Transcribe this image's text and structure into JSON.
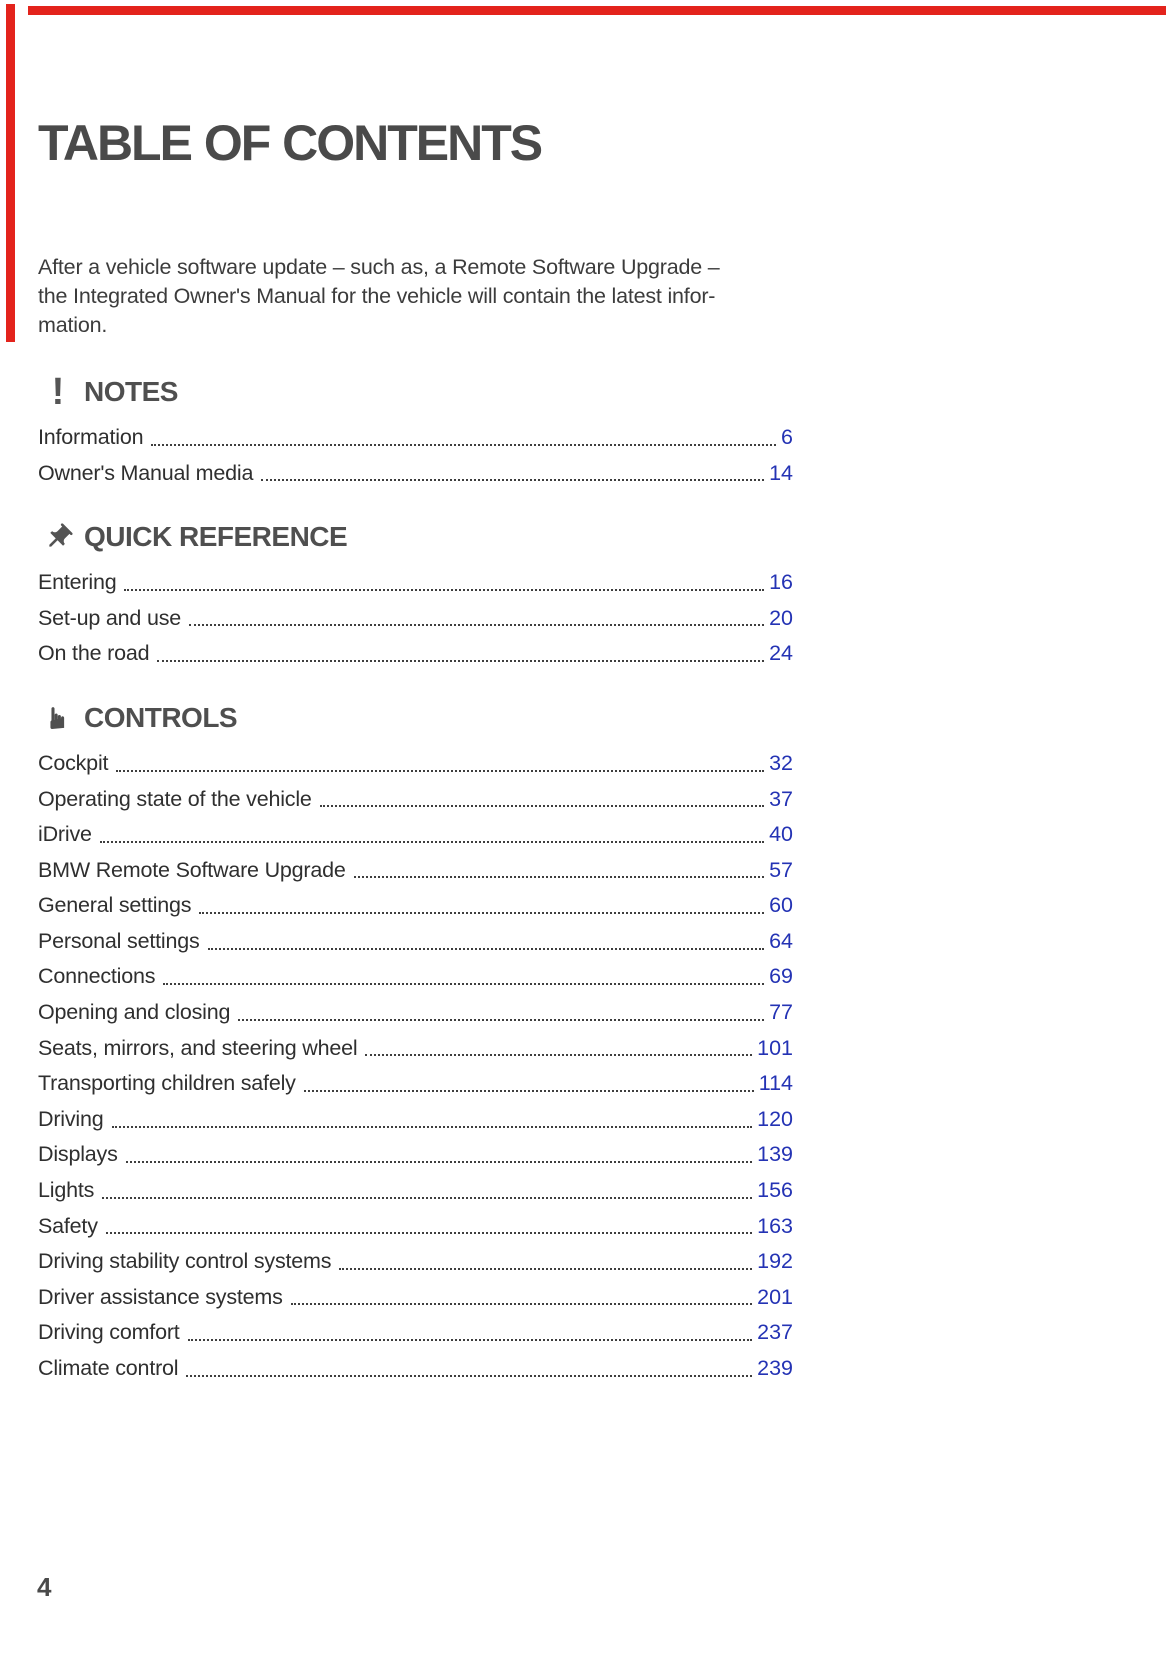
{
  "page": {
    "title": "TABLE OF CONTENTS",
    "intro": "After a vehicle software update – such as, a Remote Software Upgrade –\nthe Integrated Owner's Manual for the vehicle will contain the latest infor-\nmation.",
    "page_number": "4"
  },
  "colors": {
    "accent_red": "#e3231c",
    "link_blue": "#2433b4"
  },
  "sections": [
    {
      "icon": "exclamation-icon",
      "label": "NOTES",
      "entries": [
        {
          "label": "Information",
          "page": "6"
        },
        {
          "label": "Owner's Manual media",
          "page": "14"
        }
      ]
    },
    {
      "icon": "pushpin-icon",
      "label": "QUICK REFERENCE",
      "entries": [
        {
          "label": "Entering",
          "page": "16"
        },
        {
          "label": "Set-up and use",
          "page": "20"
        },
        {
          "label": "On the road",
          "page": "24"
        }
      ]
    },
    {
      "icon": "pointing-hand-icon",
      "label": "CONTROLS",
      "entries": [
        {
          "label": "Cockpit",
          "page": "32"
        },
        {
          "label": "Operating state of the vehicle",
          "page": "37"
        },
        {
          "label": "iDrive",
          "page": "40"
        },
        {
          "label": "BMW Remote Software Upgrade",
          "page": "57"
        },
        {
          "label": "General settings",
          "page": "60"
        },
        {
          "label": "Personal settings",
          "page": "64"
        },
        {
          "label": "Connections",
          "page": "69"
        },
        {
          "label": "Opening and closing",
          "page": "77"
        },
        {
          "label": "Seats, mirrors, and steering wheel",
          "page": "101"
        },
        {
          "label": "Transporting children safely",
          "page": "114"
        },
        {
          "label": "Driving",
          "page": "120"
        },
        {
          "label": "Displays",
          "page": "139"
        },
        {
          "label": "Lights",
          "page": "156"
        },
        {
          "label": "Safety",
          "page": "163"
        },
        {
          "label": "Driving stability control systems",
          "page": "192"
        },
        {
          "label": "Driver assistance systems",
          "page": "201"
        },
        {
          "label": "Driving comfort",
          "page": "237"
        },
        {
          "label": "Climate control",
          "page": "239"
        }
      ]
    }
  ]
}
